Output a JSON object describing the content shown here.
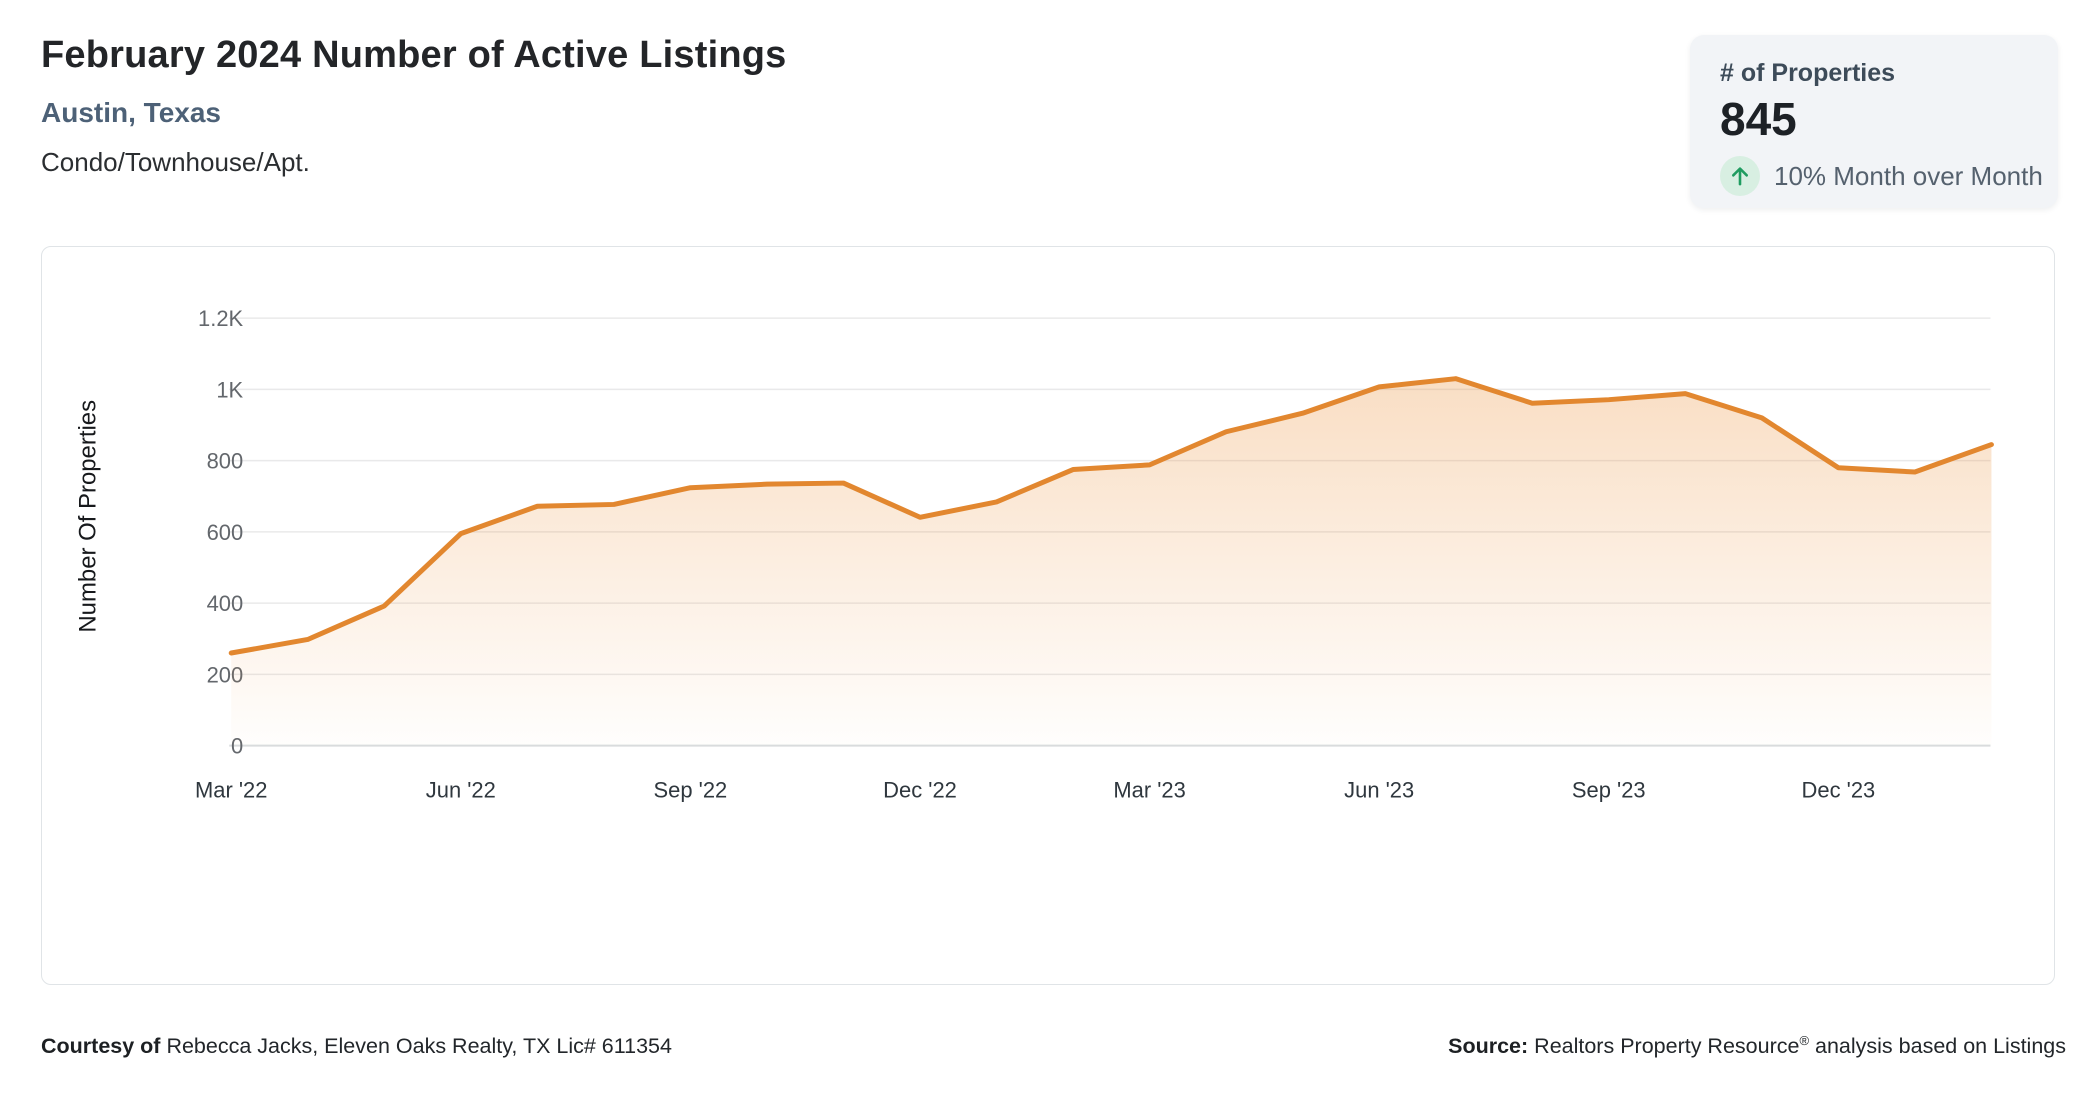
{
  "header": {
    "title": "February 2024 Number of Active Listings",
    "location": "Austin, Texas",
    "property_type": "Condo/Townhouse/Apt."
  },
  "stat_card": {
    "label": "# of Properties",
    "value": "845",
    "change_text": "10% Month over Month",
    "trend_icon": "arrow-up-icon",
    "trend_arrow_color": "#1f9c60",
    "trend_circle_color": "#d8efe2"
  },
  "chart_data": {
    "type": "area",
    "title": "February 2024 Number of Active Listings",
    "xlabel": "",
    "ylabel": "Number Of Properties",
    "x": [
      "Mar '22",
      "Apr '22",
      "May '22",
      "Jun '22",
      "Jul '22",
      "Aug '22",
      "Sep '22",
      "Oct '22",
      "Nov '22",
      "Dec '22",
      "Jan '23",
      "Feb '23",
      "Mar '23",
      "Apr '23",
      "May '23",
      "Jun '23",
      "Jul '23",
      "Aug '23",
      "Sep '23",
      "Oct '23",
      "Nov '23",
      "Dec '23",
      "Jan '24",
      "Feb '24"
    ],
    "values": [
      260,
      298,
      392,
      595,
      672,
      677,
      724,
      734,
      737,
      641,
      684,
      775,
      788,
      881,
      933,
      1007,
      1030,
      961,
      971,
      988,
      920,
      780,
      768,
      845
    ],
    "x_tick_indices": [
      0,
      3,
      6,
      9,
      12,
      15,
      18,
      21
    ],
    "y_ticks": [
      0,
      200,
      400,
      600,
      800,
      1000,
      1200
    ],
    "y_tick_labels": [
      "0",
      "200",
      "400",
      "600",
      "800",
      "1K",
      "1.2K"
    ],
    "ylim": [
      0,
      1300
    ],
    "grid": true,
    "legend": false,
    "line_color": "#e2872f",
    "fill_color_top": "rgba(235,146,60,0.30)",
    "fill_color_bottom": "rgba(235,146,60,0.01)",
    "grid_color": "#e9e9ea",
    "axis_color": "#d9dcde",
    "tick_label_color": "#63676c",
    "x_label_color": "#2f373e",
    "axis_title_color": "#17191c"
  },
  "footer": {
    "courtesy_bold": "Courtesy of",
    "courtesy_text": " Rebecca Jacks, Eleven Oaks Realty, TX Lic# 611354",
    "source_bold": "Source:",
    "source_text_1": " Realtors Property Resource",
    "source_reg": "®",
    "source_text_2": " analysis based on Listings"
  }
}
